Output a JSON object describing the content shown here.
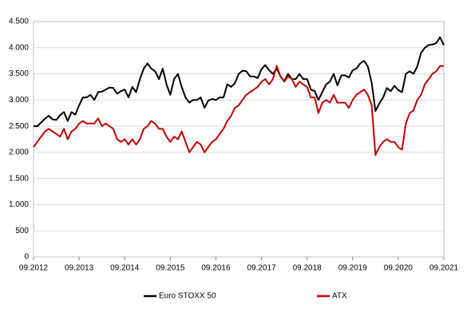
{
  "chart_data": {
    "type": "line",
    "x": [
      "09.2012",
      "10.2012",
      "11.2012",
      "12.2012",
      "01.2013",
      "02.2013",
      "03.2013",
      "04.2013",
      "05.2013",
      "06.2013",
      "07.2013",
      "08.2013",
      "09.2013",
      "10.2013",
      "11.2013",
      "12.2013",
      "01.2014",
      "02.2014",
      "03.2014",
      "04.2014",
      "05.2014",
      "06.2014",
      "07.2014",
      "08.2014",
      "09.2014",
      "10.2014",
      "11.2014",
      "12.2014",
      "01.2015",
      "02.2015",
      "03.2015",
      "04.2015",
      "05.2015",
      "06.2015",
      "07.2015",
      "08.2015",
      "09.2015",
      "10.2015",
      "11.2015",
      "12.2015",
      "01.2016",
      "02.2016",
      "03.2016",
      "04.2016",
      "05.2016",
      "06.2016",
      "07.2016",
      "08.2016",
      "09.2016",
      "10.2016",
      "11.2016",
      "12.2016",
      "01.2017",
      "02.2017",
      "03.2017",
      "04.2017",
      "05.2017",
      "06.2017",
      "07.2017",
      "08.2017",
      "09.2017",
      "10.2017",
      "11.2017",
      "12.2017",
      "01.2018",
      "02.2018",
      "03.2018",
      "04.2018",
      "05.2018",
      "06.2018",
      "07.2018",
      "08.2018",
      "09.2018",
      "10.2018",
      "11.2018",
      "12.2018",
      "01.2019",
      "02.2019",
      "03.2019",
      "04.2019",
      "05.2019",
      "06.2019",
      "07.2019",
      "08.2019",
      "09.2019",
      "10.2019",
      "11.2019",
      "12.2019",
      "01.2020",
      "02.2020",
      "03.2020",
      "04.2020",
      "05.2020",
      "06.2020",
      "07.2020",
      "08.2020",
      "09.2020",
      "10.2020",
      "11.2020",
      "12.2020",
      "01.2021",
      "02.2021",
      "03.2021",
      "04.2021",
      "05.2021",
      "06.2021",
      "07.2021",
      "08.2021",
      "09.2021"
    ],
    "series": [
      {
        "name": "Euro STOXX 50",
        "color": "#000000",
        "values": [
          2500,
          2500,
          2570,
          2640,
          2700,
          2630,
          2620,
          2710,
          2770,
          2600,
          2770,
          2720,
          2900,
          3050,
          3050,
          3100,
          3000,
          3150,
          3160,
          3200,
          3240,
          3230,
          3120,
          3170,
          3200,
          3050,
          3250,
          3150,
          3400,
          3600,
          3700,
          3600,
          3550,
          3400,
          3600,
          3300,
          3100,
          3400,
          3500,
          3250,
          3050,
          2950,
          3000,
          3000,
          3050,
          2850,
          2990,
          3020,
          3000,
          3050,
          3050,
          3300,
          3250,
          3320,
          3500,
          3560,
          3550,
          3450,
          3450,
          3420,
          3590,
          3670,
          3570,
          3500,
          3600,
          3450,
          3360,
          3500,
          3400,
          3400,
          3500,
          3400,
          3400,
          3200,
          3170,
          3000,
          3150,
          3300,
          3350,
          3500,
          3280,
          3470,
          3470,
          3430,
          3570,
          3600,
          3700,
          3750,
          3640,
          3330,
          2790,
          2930,
          3050,
          3230,
          3170,
          3270,
          3190,
          3150,
          3500,
          3550,
          3500,
          3640,
          3900,
          4000,
          4050,
          4060,
          4090,
          4200,
          4050
        ]
      },
      {
        "name": "ATX",
        "color": "#c00000",
        "values": [
          2100,
          2200,
          2300,
          2400,
          2450,
          2400,
          2350,
          2300,
          2450,
          2250,
          2400,
          2450,
          2550,
          2600,
          2550,
          2550,
          2550,
          2650,
          2500,
          2550,
          2500,
          2450,
          2250,
          2200,
          2250,
          2150,
          2250,
          2150,
          2250,
          2450,
          2500,
          2600,
          2550,
          2450,
          2450,
          2300,
          2200,
          2300,
          2250,
          2400,
          2200,
          2000,
          2100,
          2200,
          2150,
          2000,
          2100,
          2200,
          2250,
          2350,
          2450,
          2600,
          2700,
          2850,
          2900,
          3000,
          3100,
          3150,
          3200,
          3250,
          3350,
          3400,
          3300,
          3400,
          3650,
          3450,
          3350,
          3450,
          3400,
          3250,
          3350,
          3300,
          3250,
          3050,
          3050,
          2750,
          2950,
          3000,
          2950,
          3100,
          2950,
          2950,
          2950,
          2850,
          3000,
          3100,
          3150,
          3200,
          3100,
          2900,
          1950,
          2100,
          2200,
          2250,
          2200,
          2200,
          2100,
          2050,
          2550,
          2750,
          2800,
          3000,
          3100,
          3300,
          3400,
          3500,
          3550,
          3650,
          3650
        ]
      }
    ],
    "xticks": [
      "09.2012",
      "09.2013",
      "09.2014",
      "09.2015",
      "09.2016",
      "09.2017",
      "09.2018",
      "09.2019",
      "09.2020",
      "09.2021"
    ],
    "ylim": [
      0,
      4500
    ],
    "yticks": [
      0,
      500,
      {
        "value": 1000,
        "label": "1.000"
      },
      {
        "value": 1500,
        "label": "1.500"
      },
      {
        "value": 2000,
        "label": "2.000"
      },
      {
        "value": 2500,
        "label": "2.500"
      },
      {
        "value": 3000,
        "label": "3.000"
      },
      {
        "value": 3500,
        "label": "3.500"
      },
      {
        "value": 4000,
        "label": "4.000"
      },
      {
        "value": 4500,
        "label": "4.500"
      }
    ],
    "grid": true,
    "legend": "bottom"
  }
}
